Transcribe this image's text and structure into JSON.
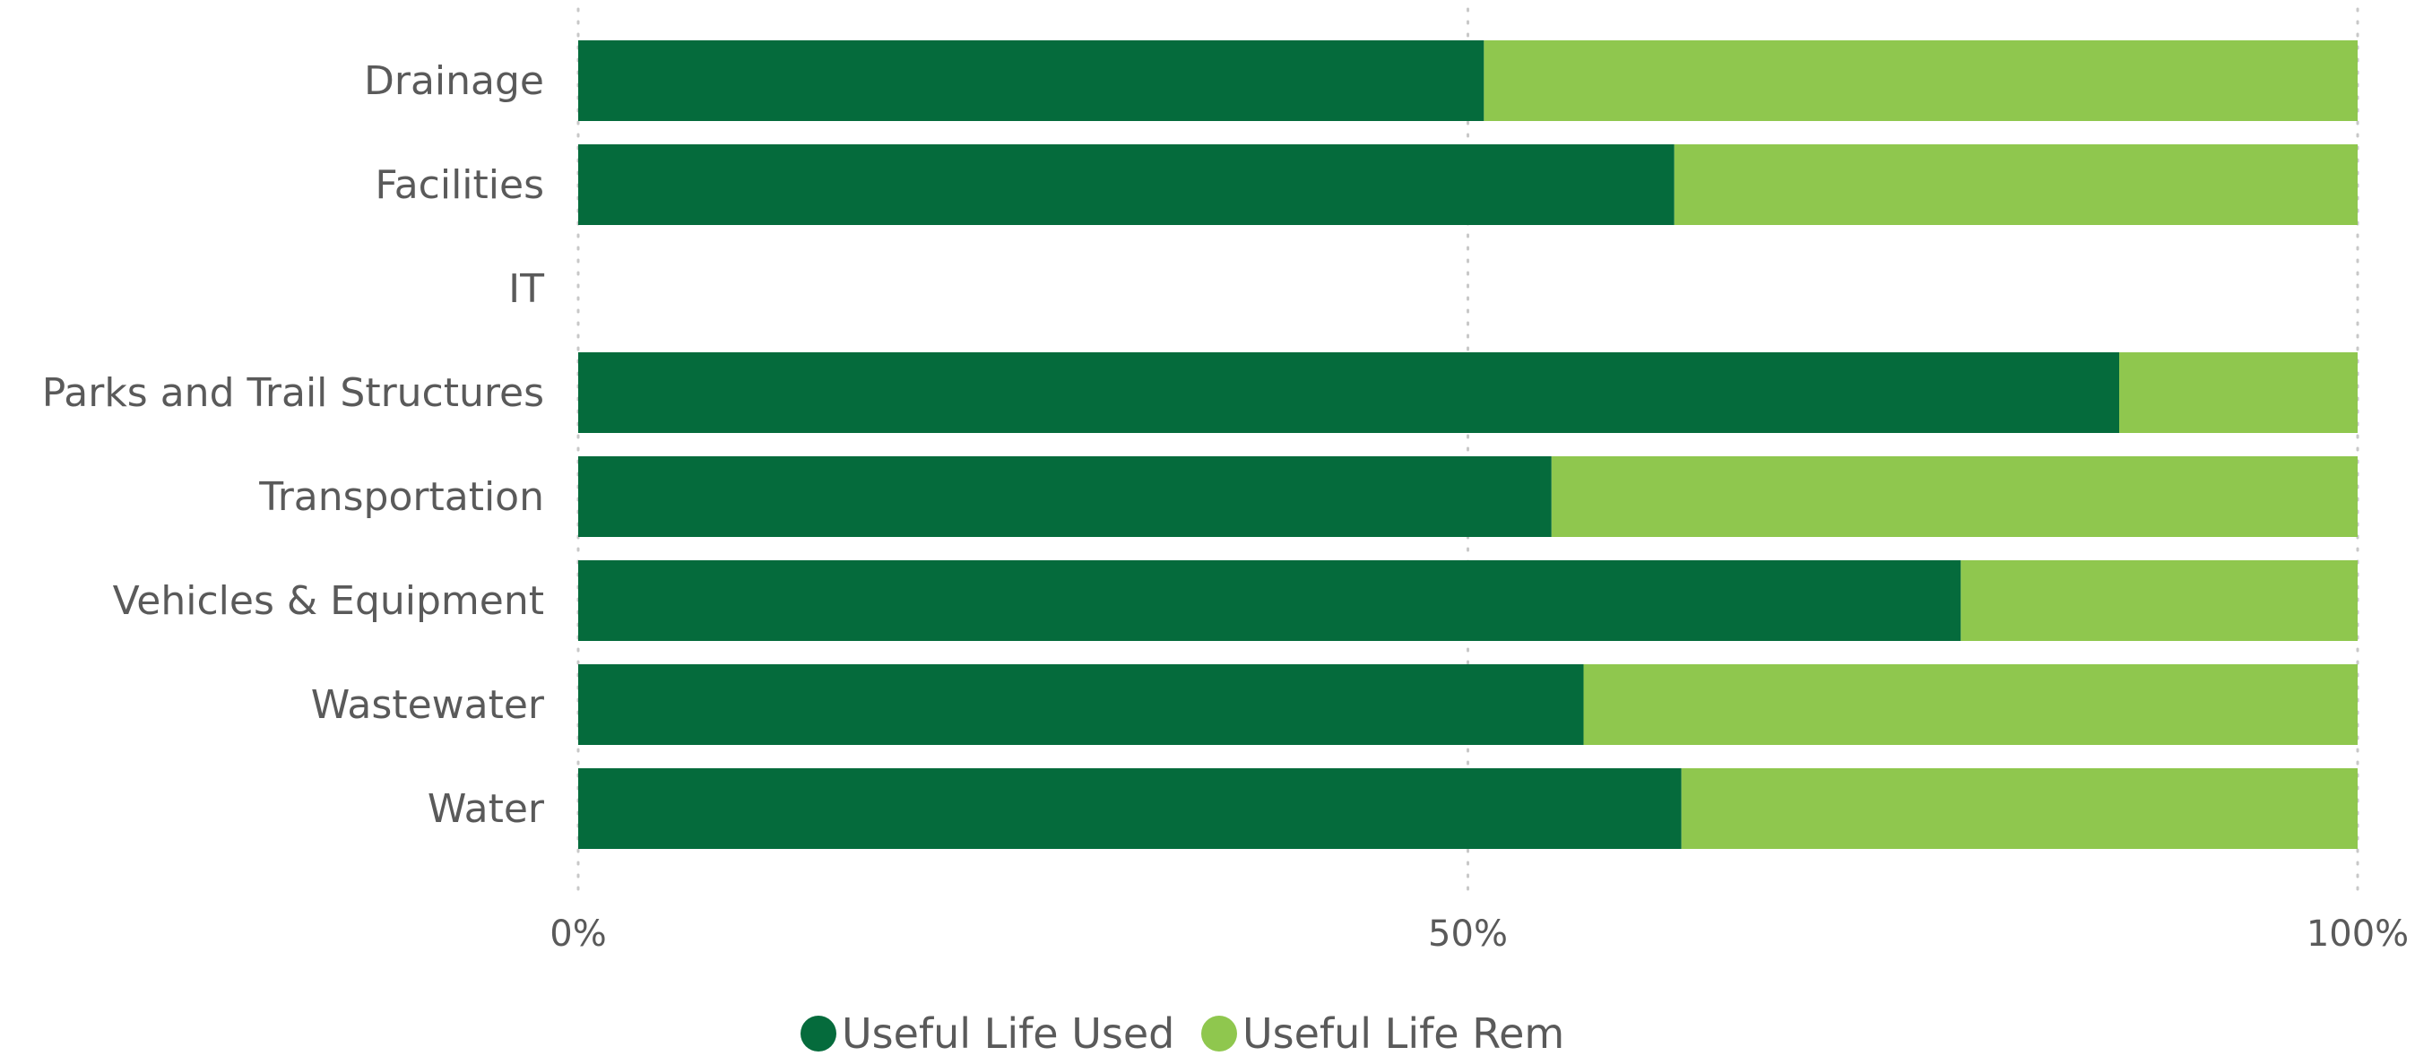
{
  "chart_data": {
    "type": "bar",
    "orientation": "horizontal",
    "stacked": "100%",
    "categories": [
      "Drainage",
      "Facilities",
      "IT",
      "Parks and Trail Structures",
      "Transportation",
      "Vehicles & Equipment",
      "Wastewater",
      "Water"
    ],
    "series": [
      {
        "name": "Useful Life Used",
        "color": "#056b3c",
        "values": [
          50.9,
          61.6,
          0,
          86.6,
          54.7,
          77.7,
          56.5,
          62.0
        ]
      },
      {
        "name": "Useful Life Rem",
        "color": "#8fc74e",
        "values": [
          49.1,
          38.4,
          0,
          13.4,
          45.3,
          22.3,
          43.5,
          38.0
        ]
      }
    ],
    "xticks": [
      "0%",
      "50%",
      "100%"
    ],
    "xlim": [
      0,
      100
    ],
    "grid": "vertical dotted",
    "legend": "bottom-center"
  }
}
